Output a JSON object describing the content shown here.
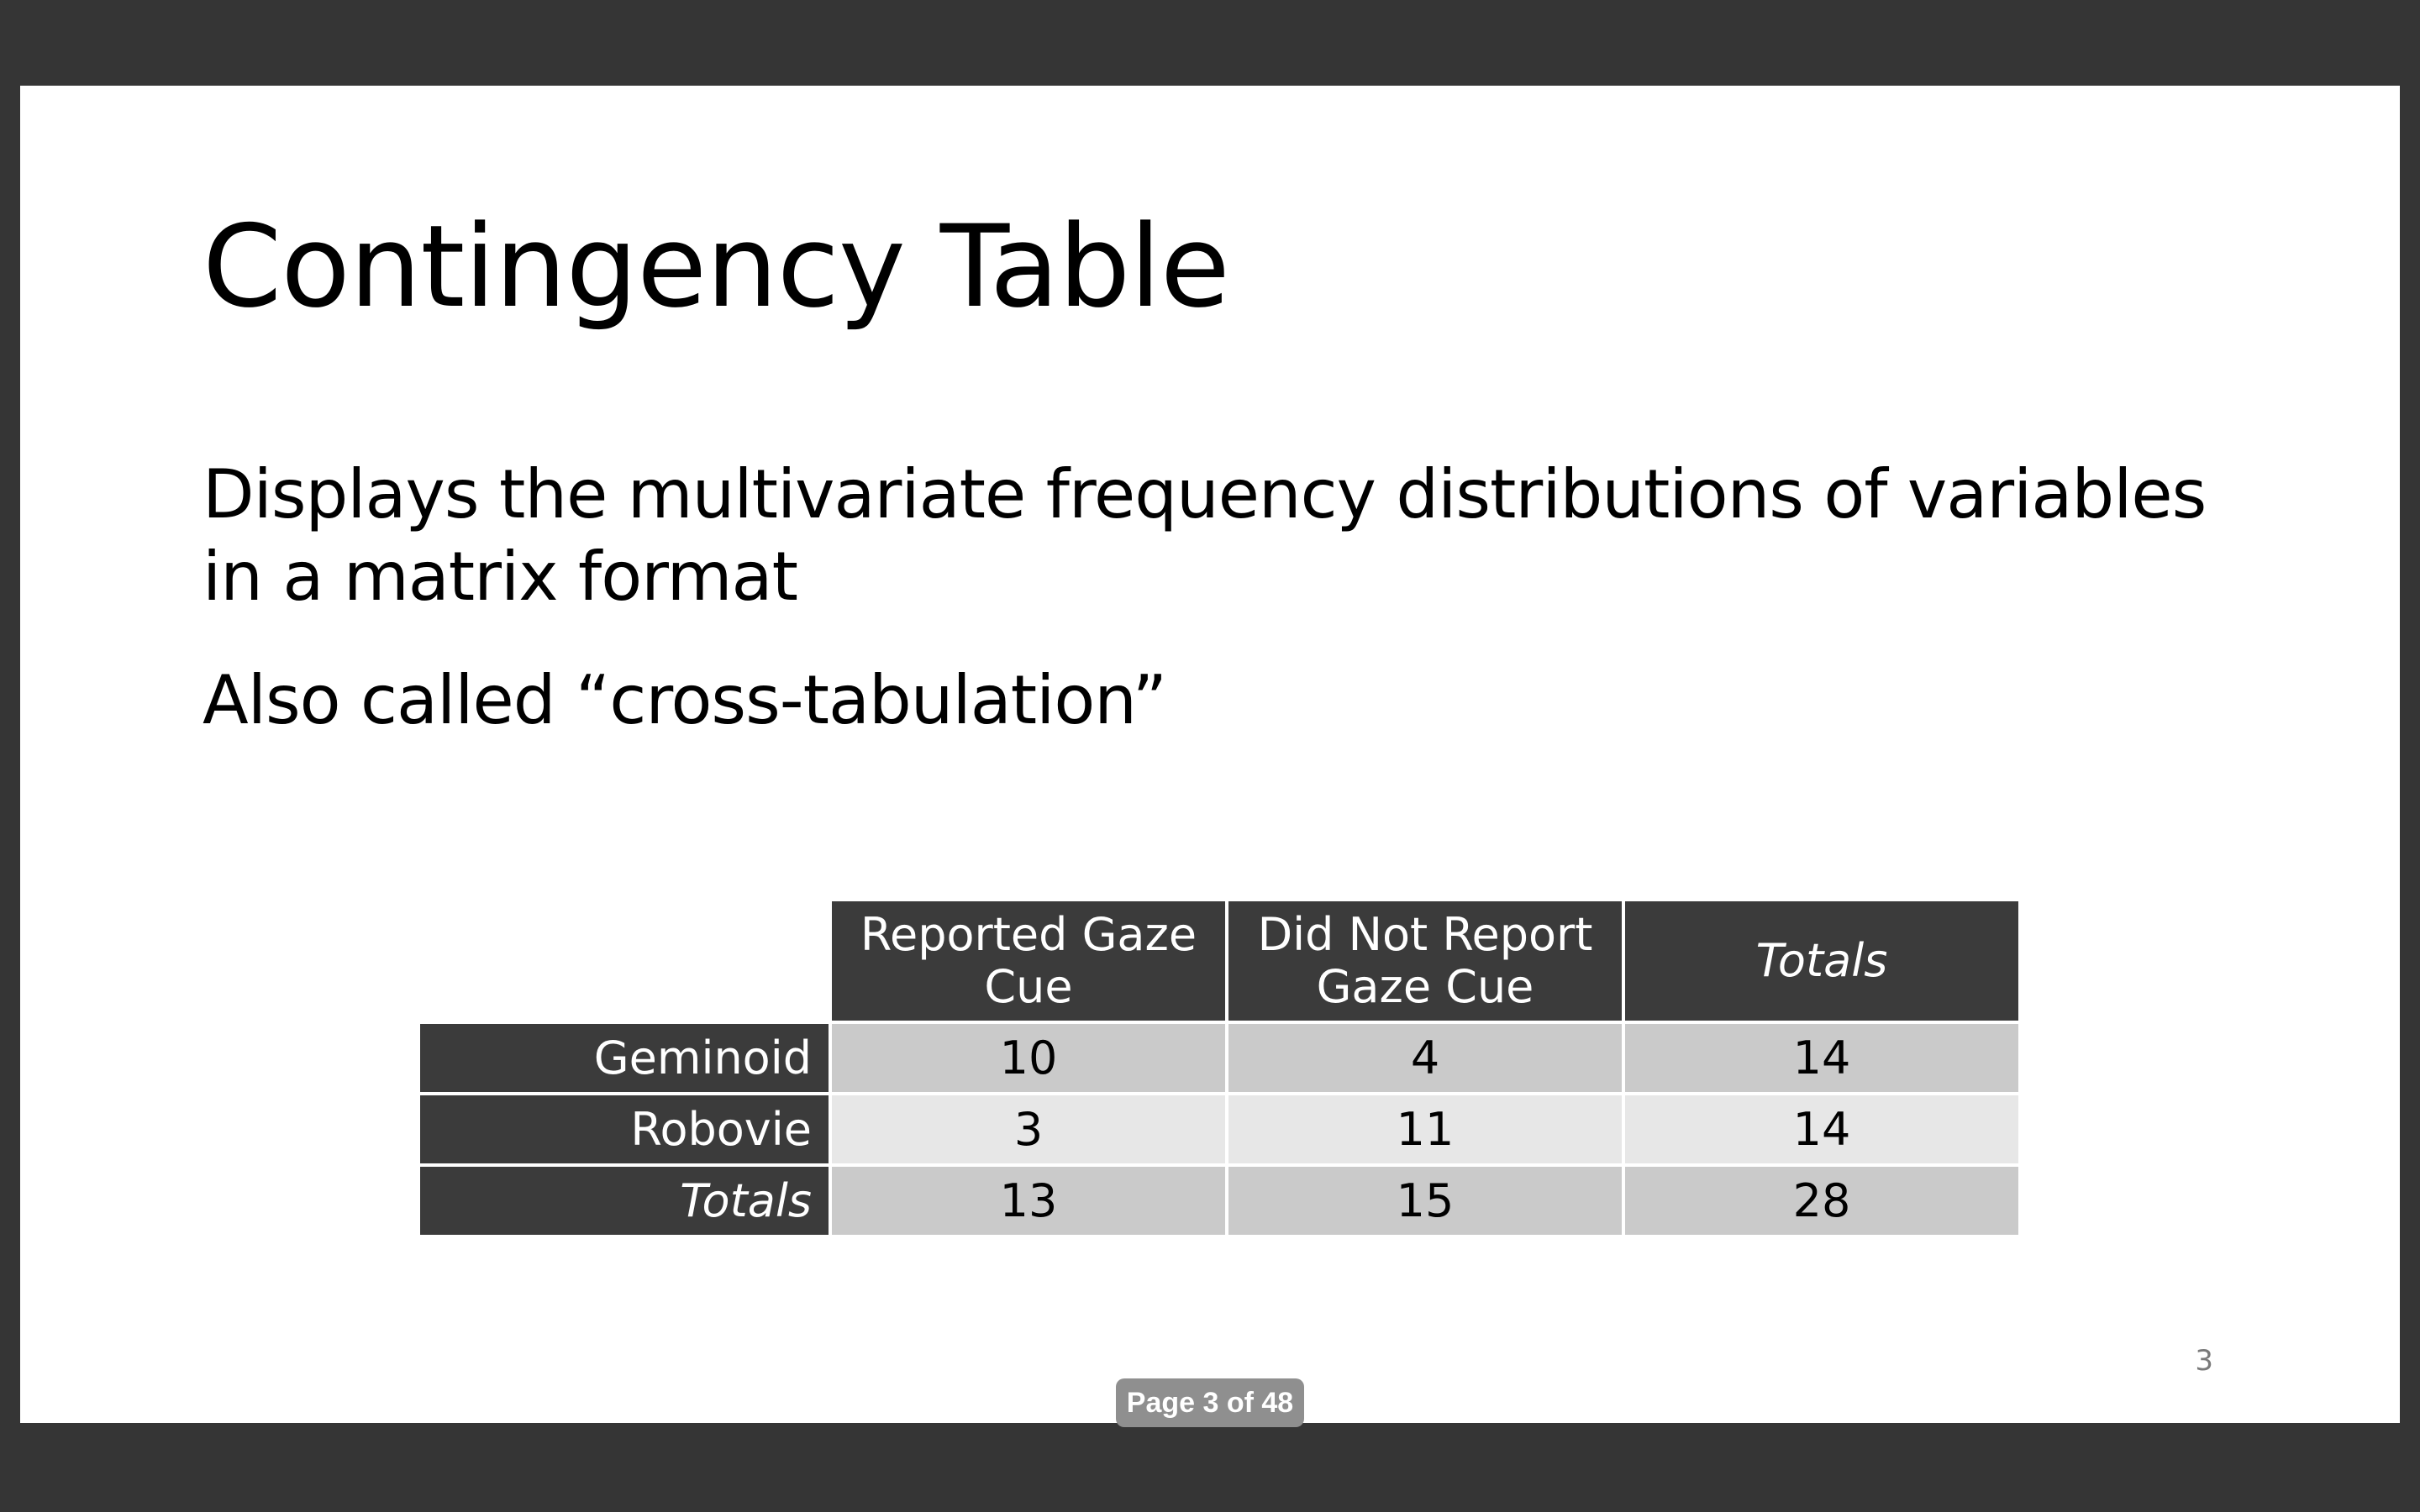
{
  "slide": {
    "title": "Contingency Table",
    "bullets": [
      "Displays the multivariate frequency distributions of variables in a matrix format",
      "Also called “cross-tabulation”"
    ],
    "slide_number": "3"
  },
  "table": {
    "columns": [
      "Reported Gaze Cue",
      "Did Not Report Gaze Cue",
      "Totals"
    ],
    "rows": [
      {
        "label": "Geminoid",
        "values": [
          "10",
          "4",
          "14"
        ]
      },
      {
        "label": "Robovie",
        "values": [
          "3",
          "11",
          "14"
        ]
      },
      {
        "label": "Totals",
        "values": [
          "13",
          "15",
          "28"
        ]
      }
    ],
    "colors": {
      "header_bg": "#3b3b3b",
      "band_dark": "#cacaca",
      "band_light": "#e7e7e7"
    }
  },
  "viewer": {
    "page_indicator": "Page 3 of 48",
    "background": "#353535"
  }
}
